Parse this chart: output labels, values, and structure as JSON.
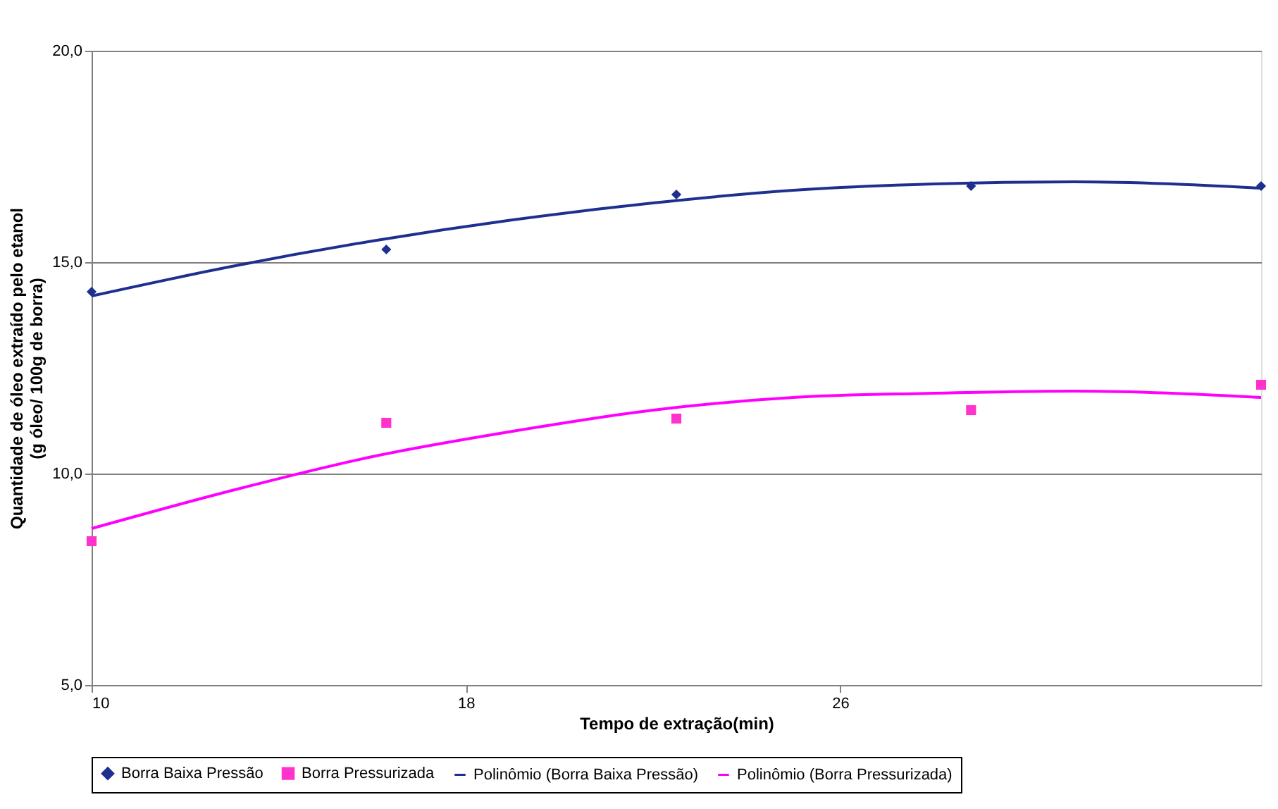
{
  "chart_data": {
    "type": "scatter",
    "xlabel": "Tempo de extração(min)",
    "ylabel": "Quantidade de óleo extraído pelo etanol\n(g óleo/ 100g de borra)",
    "xlim": [
      10,
      35
    ],
    "xticks": [
      10,
      18,
      26
    ],
    "ylim": [
      5,
      20
    ],
    "yticks": [
      {
        "value": 5,
        "label": "5,0"
      },
      {
        "value": 10,
        "label": "10,0"
      },
      {
        "value": 15,
        "label": "15,0"
      },
      {
        "value": 20,
        "label": "20,0"
      }
    ],
    "grid": "y",
    "legend": "bottom",
    "series": [
      {
        "name": "Borra Baixa Pressão",
        "marker": "diamond",
        "color": "#1f2f8f",
        "x": [
          10,
          16.3,
          22.5,
          28.8,
          35
        ],
        "values": [
          14.3,
          15.3,
          16.6,
          16.8,
          16.8
        ]
      },
      {
        "name": "Borra Pressurizada",
        "marker": "square",
        "color": "#ff33cc",
        "x": [
          10,
          16.3,
          22.5,
          28.8,
          35
        ],
        "values": [
          8.4,
          11.2,
          11.3,
          11.5,
          12.1
        ]
      },
      {
        "name": "Polinômio (Borra Baixa Pressão)",
        "type": "line",
        "color": "#1f2f8f",
        "x": [
          10,
          13,
          16,
          19,
          22,
          25,
          28,
          31,
          35
        ],
        "values": [
          14.2,
          14.9,
          15.5,
          16.0,
          16.4,
          16.7,
          16.85,
          16.9,
          16.75
        ]
      },
      {
        "name": "Polinômio (Borra Pressurizada)",
        "type": "line",
        "color": "#ff00ff",
        "x": [
          10,
          13,
          16,
          19,
          22,
          25,
          28,
          31,
          35
        ],
        "values": [
          8.7,
          9.6,
          10.4,
          11.0,
          11.5,
          11.8,
          11.9,
          11.95,
          11.8
        ]
      }
    ]
  }
}
